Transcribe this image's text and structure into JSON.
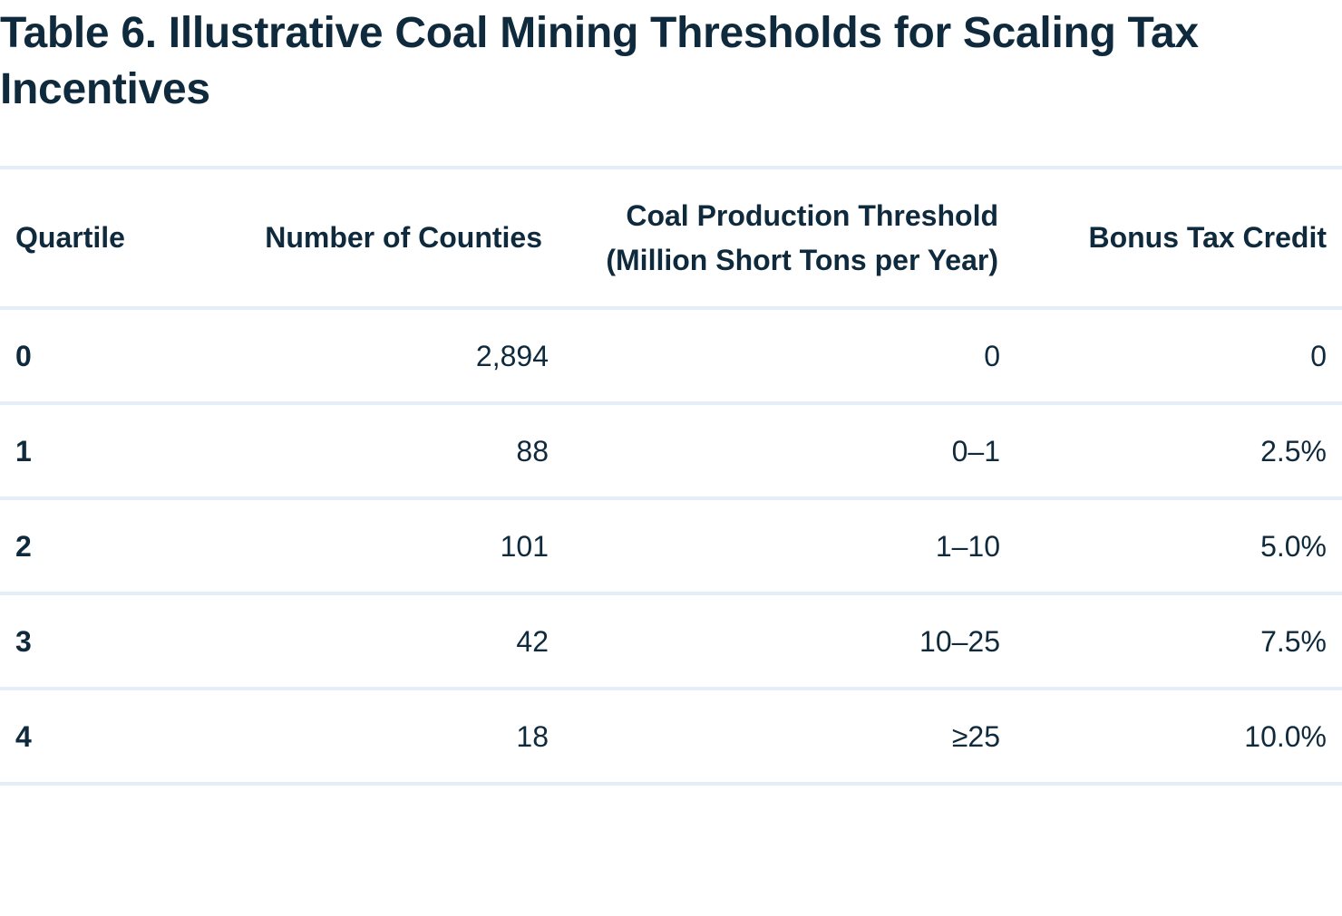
{
  "title": "Table 6.  Illustrative Coal Mining Thresholds for Scaling Tax Incentives",
  "columns": {
    "quartile": "Quartile",
    "counties": "Number of Counties",
    "threshold_line1": "Coal Production Threshold",
    "threshold_line2": "(Million Short Tons per Year)",
    "credit": "Bonus Tax Credit"
  },
  "rows": [
    {
      "quartile": "0",
      "counties": "2,894",
      "threshold": "0",
      "credit": "0"
    },
    {
      "quartile": "1",
      "counties": "88",
      "threshold": "0–1",
      "credit": "2.5%"
    },
    {
      "quartile": "2",
      "counties": "101",
      "threshold": "1–10",
      "credit": "5.0%"
    },
    {
      "quartile": "3",
      "counties": "42",
      "threshold": "10–25",
      "credit": "7.5%"
    },
    {
      "quartile": "4",
      "counties": "18",
      "threshold": "≥25",
      "credit": "10.0%"
    }
  ],
  "colors": {
    "text": "#0f2a3d",
    "rule": "#e3eef8",
    "background": "#ffffff"
  }
}
